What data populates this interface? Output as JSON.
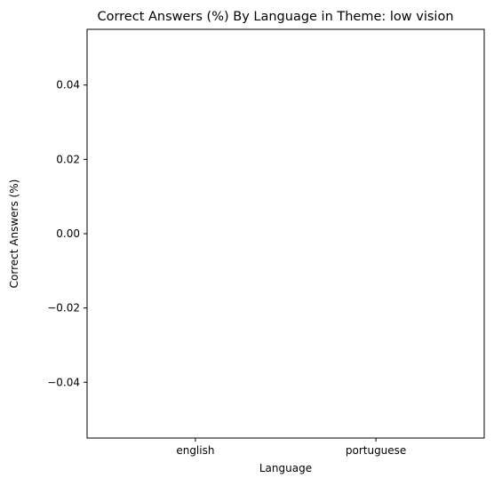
{
  "chart_data": {
    "type": "bar",
    "title": "Correct Answers (%) By Language in Theme: low vision",
    "xlabel": "Language",
    "ylabel": "Correct Answers (%)",
    "categories": [
      "english",
      "portuguese"
    ],
    "values": [
      0,
      0
    ],
    "ylim": [
      -0.055,
      0.055
    ],
    "yticks": [
      -0.04,
      -0.02,
      0.0,
      0.02,
      0.04
    ],
    "ytick_labels": [
      "−0.04",
      "−0.02",
      "0.00",
      "0.02",
      "0.04"
    ],
    "grid": false,
    "legend": "none"
  }
}
